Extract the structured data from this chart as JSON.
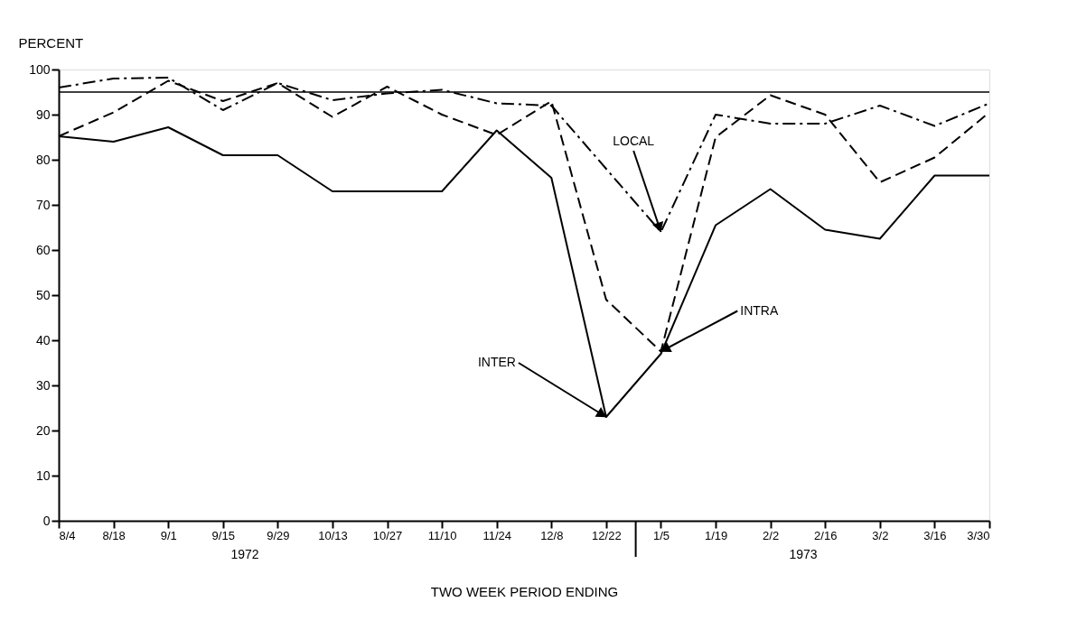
{
  "chart_data": {
    "type": "line",
    "ylabel": "PERCENT",
    "xlabel": "TWO WEEK PERIOD ENDING",
    "categories": [
      "8/4",
      "8/18",
      "9/1",
      "9/15",
      "9/29",
      "10/13",
      "10/27",
      "11/10",
      "11/24",
      "12/8",
      "12/22",
      "1/5",
      "1/19",
      "2/2",
      "2/16",
      "3/2",
      "3/16",
      "3/30"
    ],
    "series": [
      {
        "color": "#000000",
        "line_style": "solid",
        "values": [
          85.2,
          84,
          87.2,
          81,
          81,
          73,
          73,
          73,
          86.5,
          76,
          23,
          37,
          65.5,
          73.5,
          64.5,
          62.5,
          76.5,
          76.5
        ]
      },
      {
        "color": "#000000",
        "line_style": "dashed",
        "values": [
          85.2,
          90.5,
          97.5,
          93,
          97,
          89.5,
          96.2,
          90,
          85.5,
          93,
          49,
          37.5,
          85,
          94.3,
          90,
          75,
          80.5,
          90.5
        ]
      },
      {
        "color": "#000000",
        "line_style": "dashdot",
        "values": [
          96,
          98,
          98.2,
          91,
          97,
          93.2,
          94.7,
          95.5,
          92.5,
          92,
          78,
          64,
          90,
          88,
          88,
          92,
          87.5,
          92.5
        ]
      }
    ],
    "ylim": [
      0,
      100
    ],
    "yticks": [
      0,
      10,
      20,
      30,
      40,
      50,
      60,
      70,
      80,
      90,
      100
    ],
    "grid": false,
    "ref_lines": [
      {
        "axis": "y",
        "value": 95,
        "color": "#000000"
      }
    ],
    "annotations": [
      "1972",
      "1973",
      {
        "text": "LOCAL",
        "x": "1/5",
        "y": 64
      },
      {
        "text": "INTRA",
        "x": "1/5",
        "y": 37.5
      },
      {
        "text": "INTER",
        "x": "12/22",
        "y": 23
      }
    ]
  }
}
